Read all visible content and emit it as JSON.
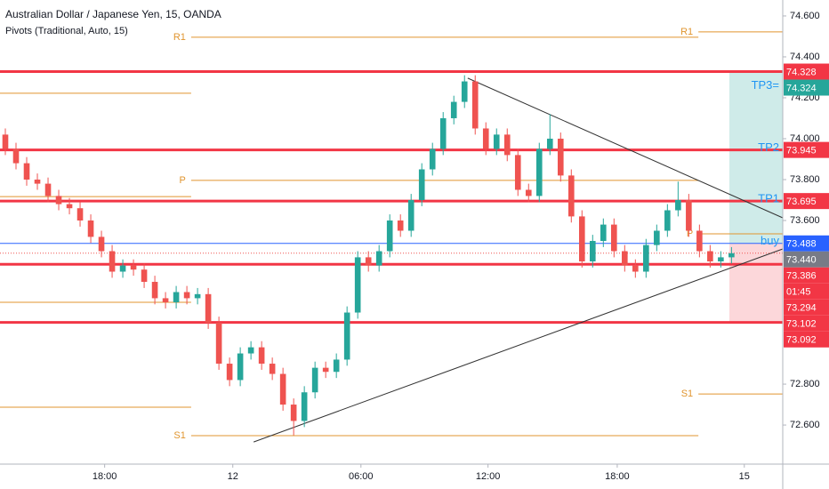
{
  "chart_data": {
    "type": "candlestick",
    "title": "Australian Dollar / Japanese Yen, 15, OANDA",
    "subtitle": "Pivots (Traditional, Auto, 15)",
    "up_color": "#26a69a",
    "down_color": "#ef5350",
    "xlim": [
      0,
      73.3
    ],
    "ylim": [
      72.409,
      74.678
    ],
    "xticks": [
      {
        "value": 9.8,
        "label": "18:00"
      },
      {
        "value": 21.8,
        "label": "12"
      },
      {
        "value": 33.8,
        "label": "06:00"
      },
      {
        "value": 45.7,
        "label": "12:00"
      },
      {
        "value": 57.8,
        "label": "18:00"
      },
      {
        "value": 69.7,
        "label": "15"
      }
    ],
    "yticks": [
      {
        "value": 74.6,
        "label": "74.600"
      },
      {
        "value": 74.4,
        "label": "74.400"
      },
      {
        "value": 74.2,
        "label": "74.200"
      },
      {
        "value": 74.0,
        "label": "74.000"
      },
      {
        "value": 73.8,
        "label": "73.800"
      },
      {
        "value": 73.6,
        "label": "73.600"
      },
      {
        "value": 72.8,
        "label": "72.800"
      },
      {
        "value": 72.6,
        "label": "72.600"
      }
    ],
    "candles": [
      [
        74.02,
        74.05,
        73.92,
        73.95
      ],
      [
        73.95,
        73.98,
        73.85,
        73.88
      ],
      [
        73.88,
        73.91,
        73.77,
        73.8
      ],
      [
        73.8,
        73.83,
        73.75,
        73.78
      ],
      [
        73.78,
        73.81,
        73.69,
        73.72
      ],
      [
        73.72,
        73.75,
        73.65,
        73.68
      ],
      [
        73.68,
        73.71,
        73.63,
        73.66
      ],
      [
        73.66,
        73.69,
        73.57,
        73.6
      ],
      [
        73.6,
        73.63,
        73.49,
        73.52
      ],
      [
        73.52,
        73.55,
        73.42,
        73.45
      ],
      [
        73.45,
        73.48,
        73.32,
        73.35
      ],
      [
        73.35,
        73.41,
        73.32,
        73.38
      ],
      [
        73.38,
        73.41,
        73.33,
        73.36
      ],
      [
        73.36,
        73.39,
        73.27,
        73.3
      ],
      [
        73.3,
        73.33,
        73.19,
        73.22
      ],
      [
        73.22,
        73.25,
        73.17,
        73.2
      ],
      [
        73.2,
        73.28,
        73.17,
        73.25
      ],
      [
        73.25,
        73.28,
        73.19,
        73.22
      ],
      [
        73.22,
        73.27,
        73.19,
        73.24
      ],
      [
        73.24,
        73.27,
        73.07,
        73.1
      ],
      [
        73.1,
        73.13,
        72.87,
        72.9
      ],
      [
        72.9,
        72.93,
        72.79,
        72.82
      ],
      [
        72.82,
        72.98,
        72.79,
        72.95
      ],
      [
        72.95,
        73.01,
        72.92,
        72.98
      ],
      [
        72.98,
        73.01,
        72.87,
        72.9
      ],
      [
        72.9,
        72.93,
        72.82,
        72.85
      ],
      [
        72.85,
        72.88,
        72.67,
        72.7
      ],
      [
        72.7,
        72.73,
        72.55,
        72.62
      ],
      [
        72.62,
        72.79,
        72.59,
        72.76
      ],
      [
        72.76,
        72.91,
        72.73,
        72.88
      ],
      [
        72.88,
        72.91,
        72.83,
        72.86
      ],
      [
        72.86,
        72.95,
        72.83,
        72.92
      ],
      [
        72.92,
        73.18,
        72.89,
        73.15
      ],
      [
        73.15,
        73.45,
        73.12,
        73.42
      ],
      [
        73.42,
        73.45,
        73.35,
        73.38
      ],
      [
        73.38,
        73.48,
        73.35,
        73.45
      ],
      [
        73.45,
        73.63,
        73.42,
        73.6
      ],
      [
        73.6,
        73.63,
        73.52,
        73.55
      ],
      [
        73.55,
        73.73,
        73.52,
        73.7
      ],
      [
        73.7,
        73.88,
        73.67,
        73.85
      ],
      [
        73.85,
        73.98,
        73.82,
        73.95
      ],
      [
        73.95,
        74.13,
        73.92,
        74.1
      ],
      [
        74.1,
        74.21,
        74.07,
        74.18
      ],
      [
        74.18,
        74.31,
        74.15,
        74.28
      ],
      [
        74.28,
        74.31,
        74.02,
        74.05
      ],
      [
        74.05,
        74.08,
        73.92,
        73.95
      ],
      [
        73.95,
        74.05,
        73.92,
        74.02
      ],
      [
        74.02,
        74.05,
        73.89,
        73.92
      ],
      [
        73.92,
        73.95,
        73.72,
        73.75
      ],
      [
        73.75,
        73.78,
        73.69,
        73.72
      ],
      [
        73.72,
        73.98,
        73.69,
        73.95
      ],
      [
        73.95,
        74.12,
        73.92,
        74.0
      ],
      [
        74.0,
        74.03,
        73.79,
        73.82
      ],
      [
        73.82,
        73.85,
        73.59,
        73.62
      ],
      [
        73.62,
        73.65,
        73.37,
        73.4
      ],
      [
        73.4,
        73.53,
        73.37,
        73.5
      ],
      [
        73.5,
        73.61,
        73.47,
        73.58
      ],
      [
        73.58,
        73.61,
        73.42,
        73.45
      ],
      [
        73.45,
        73.48,
        73.35,
        73.38
      ],
      [
        73.38,
        73.41,
        73.32,
        73.35
      ],
      [
        73.35,
        73.51,
        73.32,
        73.48
      ],
      [
        73.48,
        73.58,
        73.45,
        73.55
      ],
      [
        73.55,
        73.68,
        73.52,
        73.65
      ],
      [
        73.65,
        73.79,
        73.62,
        73.7
      ],
      [
        73.7,
        73.73,
        73.52,
        73.55
      ],
      [
        73.55,
        73.58,
        73.42,
        73.45
      ],
      [
        73.45,
        73.48,
        73.37,
        73.4
      ],
      [
        73.4,
        73.45,
        73.37,
        73.42
      ],
      [
        73.42,
        73.47,
        73.39,
        73.44
      ]
    ],
    "levels": [
      {
        "value": 74.328,
        "color": "#f23645"
      },
      {
        "value": 73.945,
        "color": "#f23645"
      },
      {
        "value": 73.695,
        "color": "#f23645"
      },
      {
        "value": 73.488,
        "color": "#2962ff"
      },
      {
        "value": 73.386,
        "color": "#f23645"
      },
      {
        "value": 73.102,
        "color": "#f23645"
      }
    ],
    "last_price": 73.44,
    "pivot_color": "#e0952f",
    "pivot_sessions": [
      {
        "x": [
          0,
          17.9
        ],
        "levels": [
          74.222,
          73.717,
          73.2,
          72.687
        ]
      },
      {
        "x": [
          17.9,
          65.4
        ],
        "levels": [
          74.496,
          73.796,
          72.548
        ],
        "labels": [
          "R1",
          "P",
          "S1"
        ]
      },
      {
        "x": [
          65.4,
          73.3
        ],
        "levels": [
          74.522,
          73.535,
          72.752
        ],
        "labels": [
          "R1",
          "P",
          "S1"
        ]
      }
    ],
    "trendlines": [
      {
        "x": [
          43.8,
          73.3
        ],
        "y": [
          74.296,
          73.613
        ]
      },
      {
        "x": [
          23.75,
          73.3
        ],
        "y": [
          72.517,
          73.461
        ]
      }
    ],
    "position": {
      "x": [
        68.3,
        73.3
      ],
      "entry": 73.488,
      "target": 74.328,
      "stop": 73.102
    },
    "annotations": [
      {
        "text": "TP3=",
        "value": 74.324
      },
      {
        "text": "TP2",
        "value": 73.945
      },
      {
        "text": "TP1",
        "value": 73.695
      },
      {
        "text": "buy",
        "value": 73.488
      }
    ],
    "price_tags": [
      {
        "value": 74.328,
        "label": "74.328",
        "color": "#f23645"
      },
      {
        "value": 74.324,
        "label": "74.324",
        "color": "#26a69a"
      },
      {
        "value": 73.945,
        "label": "73.945",
        "color": "#f23645"
      },
      {
        "value": 73.695,
        "label": "73.695",
        "color": "#f23645"
      },
      {
        "value": 73.488,
        "label": "73.488",
        "color": "#2962ff"
      },
      {
        "value": 73.44,
        "label": "73.440",
        "color": "#787b86"
      },
      {
        "value": 73.386,
        "label": "73.386",
        "color": "#f23645"
      },
      {
        "label": "01:45",
        "color": "#f23645"
      },
      {
        "value": 73.294,
        "label": "73.294",
        "color": "#f23645"
      },
      {
        "value": 73.102,
        "label": "73.102",
        "color": "#f23645"
      },
      {
        "value": 73.092,
        "label": "73.092",
        "color": "#f23645"
      }
    ]
  }
}
